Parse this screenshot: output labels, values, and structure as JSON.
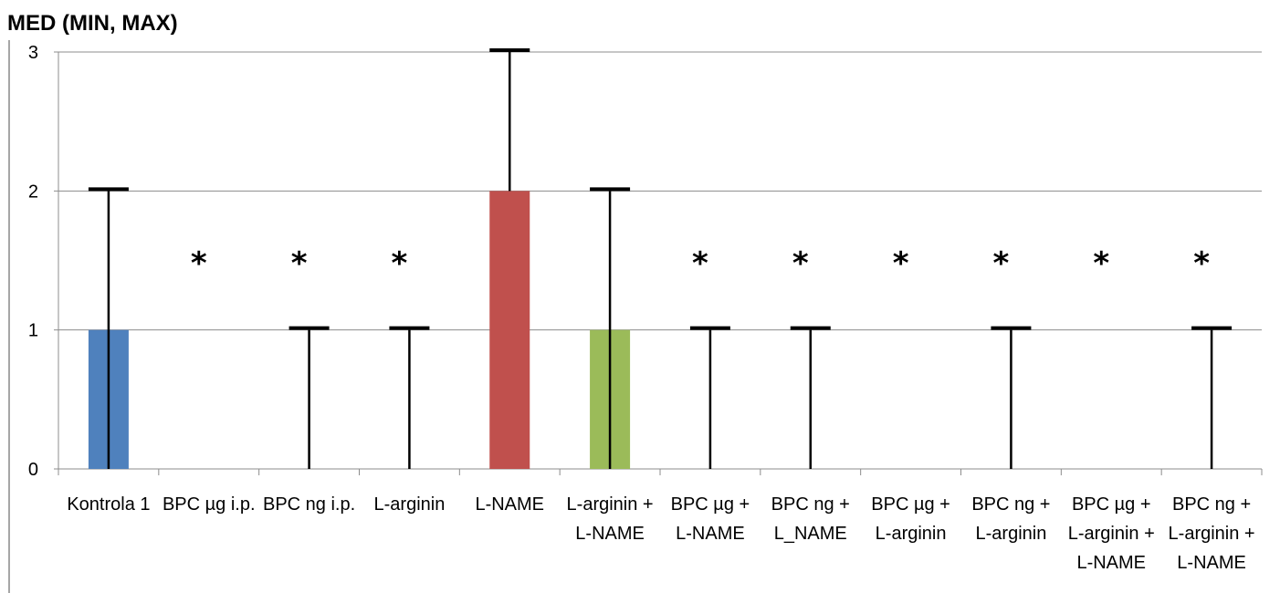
{
  "title": "MED (MIN, MAX)",
  "chart_data": {
    "type": "bar",
    "title": "MED (MIN, MAX)",
    "xlabel": "",
    "ylabel": "",
    "ylim": [
      0,
      3
    ],
    "yticks": [
      "0",
      "1",
      "2",
      "3"
    ],
    "grid": true,
    "categories": [
      [
        "Kontrola 1"
      ],
      [
        "BPC µg i.p."
      ],
      [
        "BPC ng i.p."
      ],
      [
        "L-arginin"
      ],
      [
        "L-NAME"
      ],
      [
        "L-arginin +",
        "L-NAME"
      ],
      [
        "BPC µg +",
        "L-NAME"
      ],
      [
        "BPC ng +",
        "L_NAME"
      ],
      [
        "BPC µg +",
        "L-arginin"
      ],
      [
        "BPC ng +",
        "L-arginin"
      ],
      [
        "BPC µg +",
        "L-arginin +",
        "L-NAME"
      ],
      [
        "BPC ng +",
        "L-arginin +",
        "L-NAME"
      ]
    ],
    "median": [
      1,
      0,
      0,
      0,
      2,
      1,
      0,
      0,
      0,
      0,
      0,
      0
    ],
    "min": [
      0,
      0,
      0,
      0,
      2,
      0,
      0,
      0,
      0,
      0,
      0,
      0
    ],
    "max": [
      2,
      0,
      1,
      1,
      3,
      2,
      1,
      1,
      0,
      1,
      0,
      1
    ],
    "significance": [
      "",
      "*",
      "*",
      "*",
      "",
      "",
      "*",
      "*",
      "*",
      "*",
      "*",
      "*"
    ],
    "colors": [
      "#4f81bd",
      "#4f81bd",
      "#4f81bd",
      "#4f81bd",
      "#c0504d",
      "#9bbb59",
      "#4f81bd",
      "#4f81bd",
      "#4f81bd",
      "#4f81bd",
      "#4f81bd",
      "#4f81bd"
    ]
  }
}
